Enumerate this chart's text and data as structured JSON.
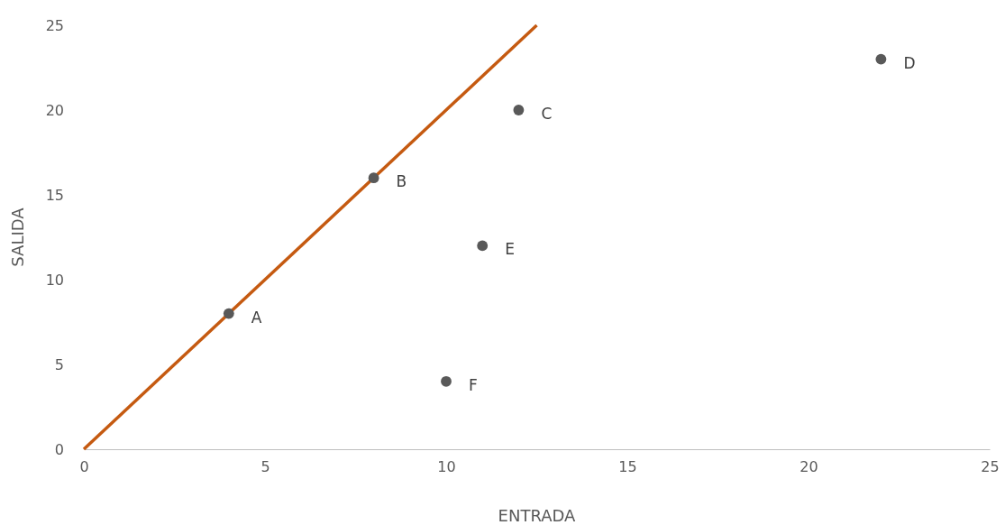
{
  "chart_data": {
    "type": "scatter",
    "xlabel": "ENTRADA",
    "ylabel": "SALIDA",
    "xlim": [
      0,
      25
    ],
    "xticks": [
      0,
      5,
      10,
      15,
      20,
      25
    ],
    "ylim": [
      0,
      25
    ],
    "yticks": [
      0,
      5,
      10,
      15,
      20,
      25
    ],
    "grid": false,
    "marker": "circle",
    "series": [
      {
        "type": "line",
        "marker": "none",
        "color": "#c55a11",
        "x": [
          0,
          12.5
        ],
        "values": [
          0,
          25
        ]
      },
      {
        "color": "#595959",
        "x": [
          4,
          8,
          12,
          22,
          11,
          10
        ],
        "values": [
          8,
          16,
          20,
          23,
          12,
          4
        ]
      }
    ],
    "annotations": [
      {
        "text": "A",
        "x": 4,
        "y": 8
      },
      {
        "text": "B",
        "x": 8,
        "y": 16
      },
      {
        "text": "C",
        "x": 12,
        "y": 20
      },
      {
        "text": "D",
        "x": 22,
        "y": 23
      },
      {
        "text": "E",
        "x": 11,
        "y": 12
      },
      {
        "text": "F",
        "x": 10,
        "y": 4
      }
    ]
  }
}
